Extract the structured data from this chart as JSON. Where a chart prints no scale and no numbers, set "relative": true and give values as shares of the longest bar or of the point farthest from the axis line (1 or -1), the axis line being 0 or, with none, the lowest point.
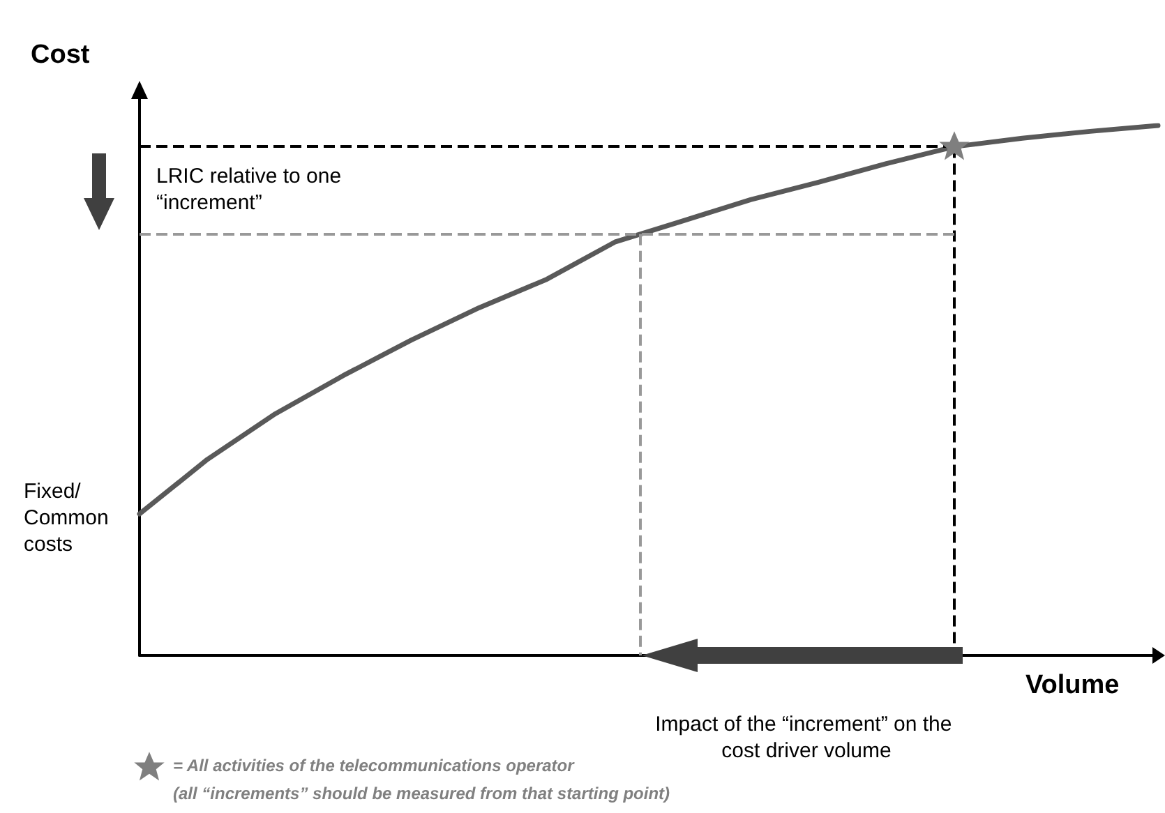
{
  "chart_data": {
    "type": "line",
    "relative": true,
    "xlabel": "Volume",
    "ylabel": "Cost",
    "grid": false,
    "marker": "none",
    "categories": [
      null,
      null,
      null,
      null,
      null,
      null,
      null,
      null,
      null,
      null,
      null,
      null,
      null,
      null,
      null,
      null
    ],
    "series": [
      {
        "color": "#595959",
        "values": [
          0.267,
          0.37,
          0.456,
          0.528,
          0.595,
          0.656,
          0.71,
          0.78,
          0.82,
          0.86,
          0.893,
          0.928,
          0.96,
          0.976,
          0.989,
          1
        ]
      }
    ],
    "ref_lines": [
      {
        "axis": "y",
        "value": 0.96,
        "color": "#000000",
        "line_style": "dashed"
      },
      {
        "axis": "y",
        "value": 0.795,
        "color": "#999999",
        "line_style": "dashed"
      }
    ],
    "annotations": [
      "Fixed/ Common costs",
      "LRIC relative to one “increment”",
      "Impact of the “increment” on the cost driver volume",
      "= All activities of the telecommunications operator",
      "(all “increments” should be measured from that starting point)"
    ]
  }
}
